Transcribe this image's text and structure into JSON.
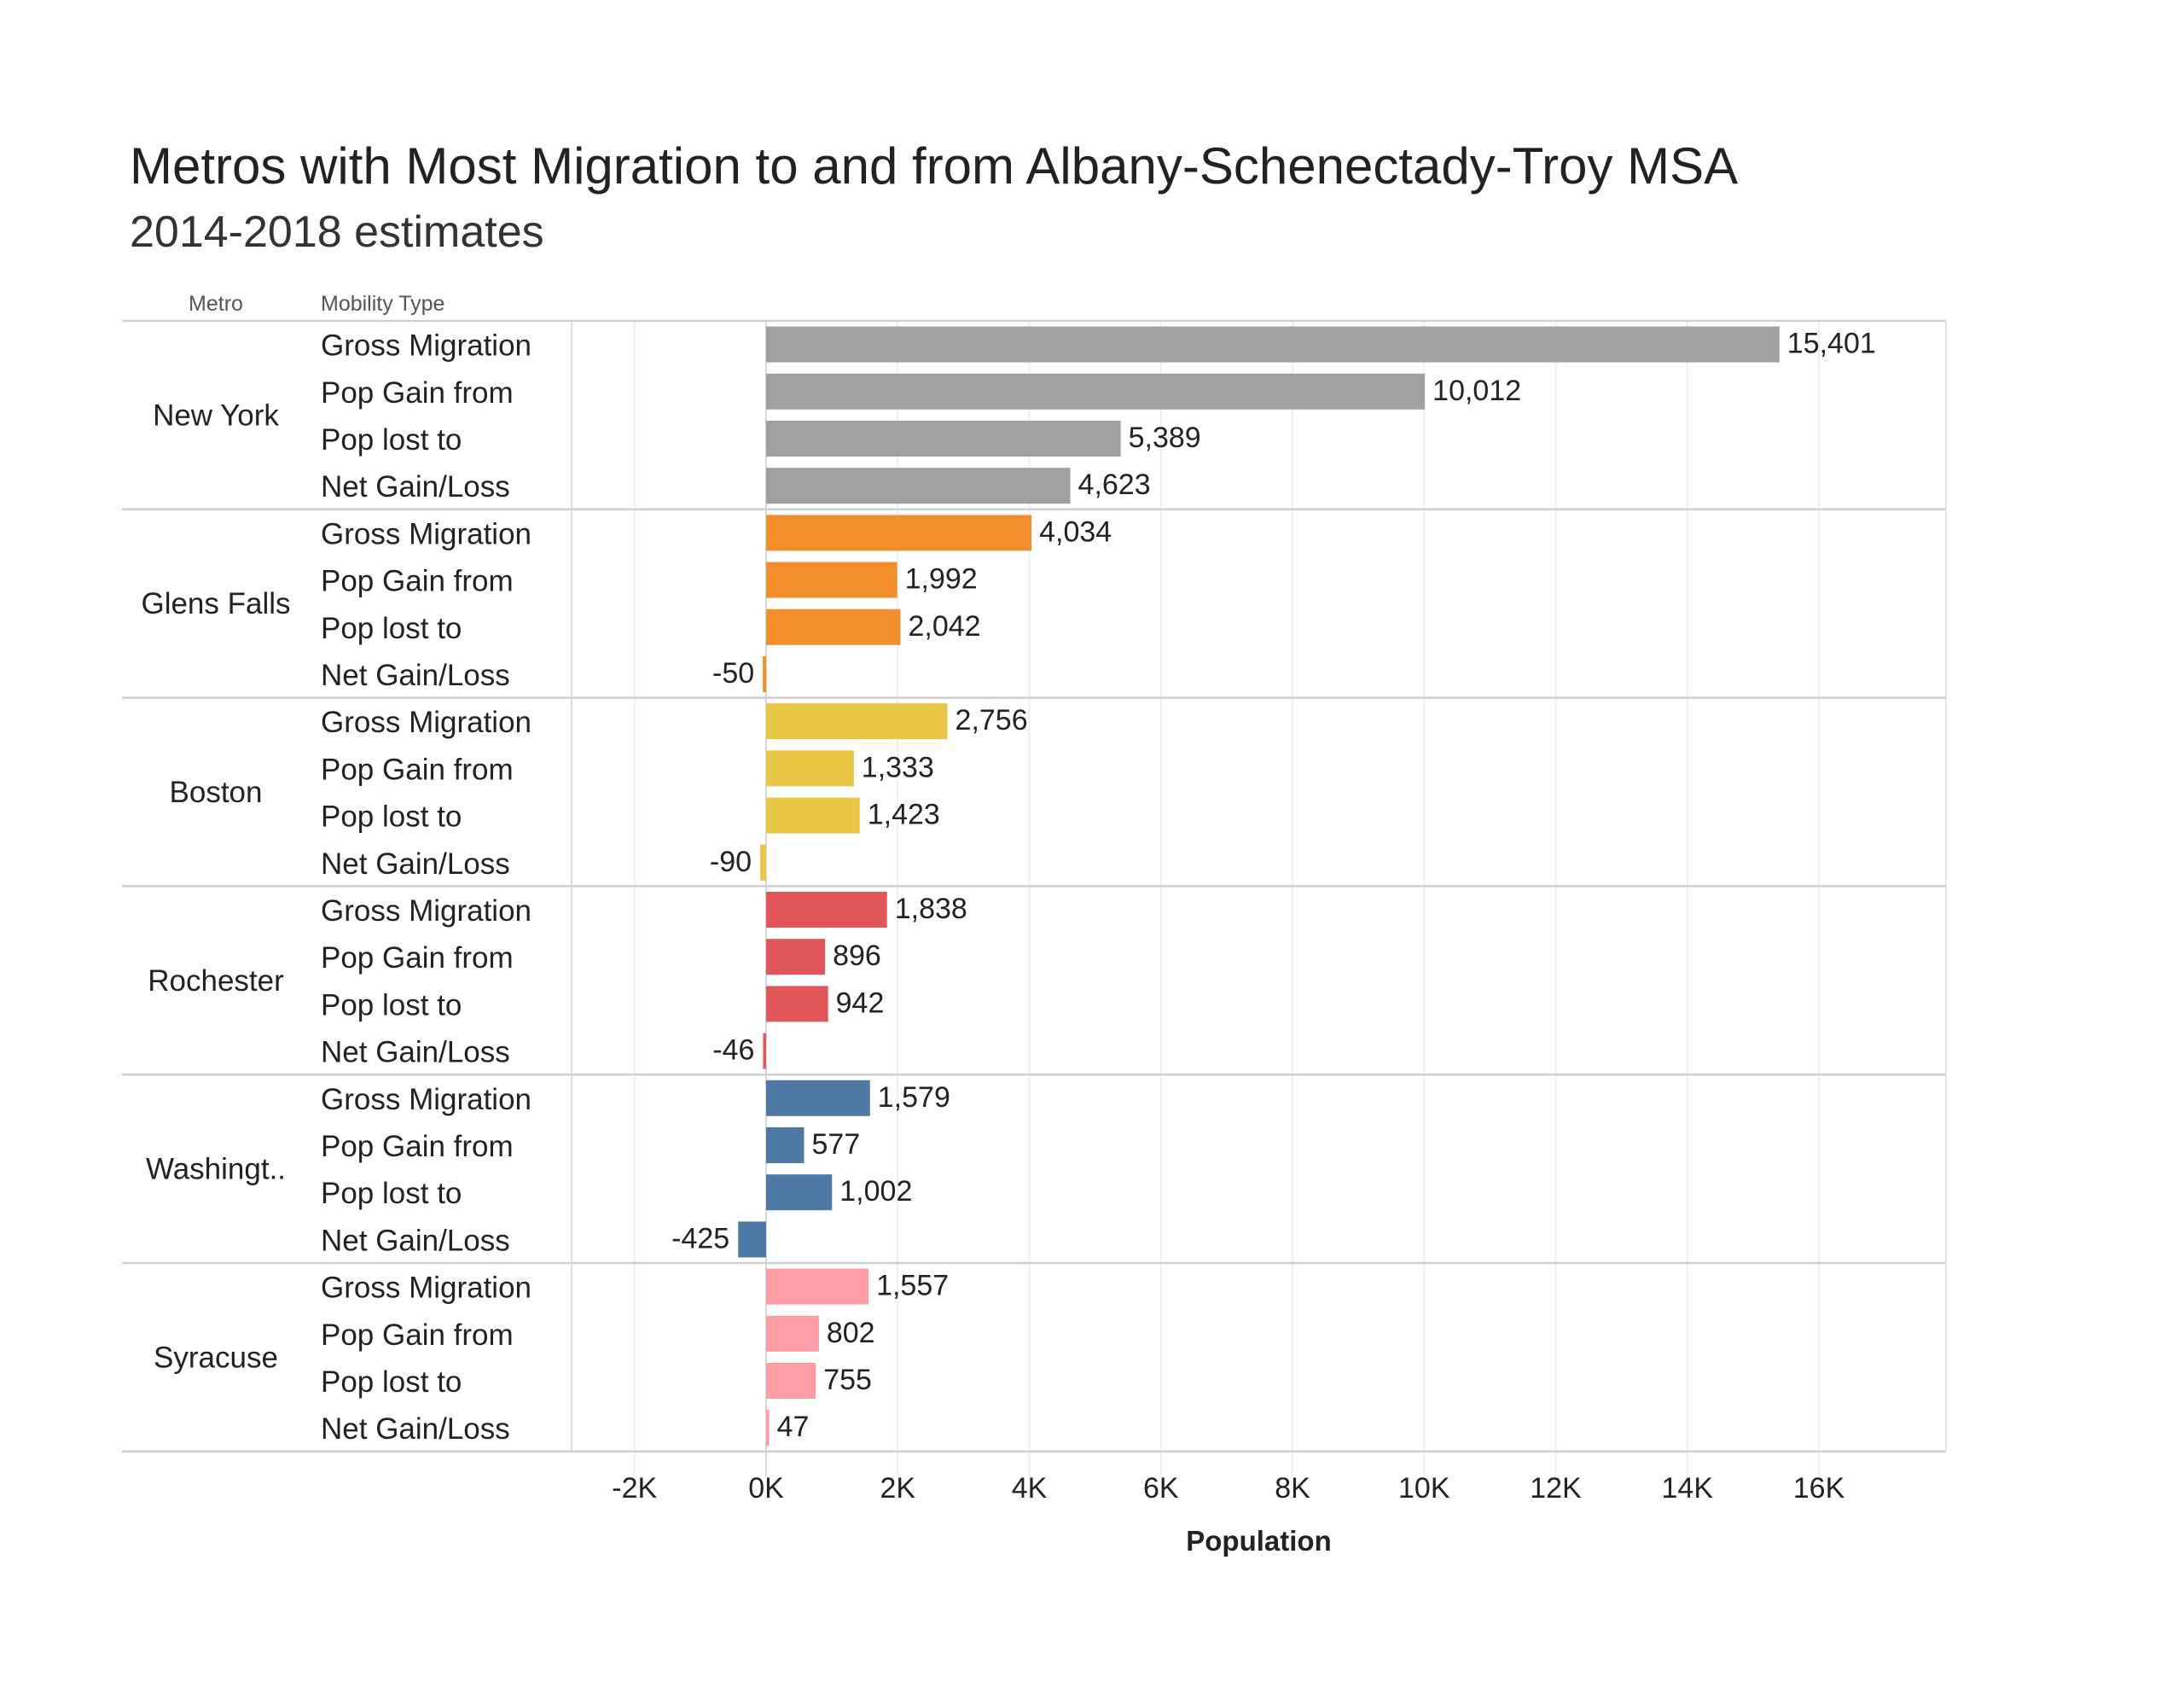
{
  "chart_data": {
    "type": "bar",
    "orientation": "horizontal",
    "title": "Metros with Most Migration to and from Albany-Schenectady-Troy MSA",
    "subtitle": "2014-2018 estimates",
    "row_headers": [
      "Metro",
      "Mobility Type"
    ],
    "xlabel": "Population",
    "xlim": [
      -2000,
      17500
    ],
    "x_ticks": [
      -2000,
      0,
      2000,
      4000,
      6000,
      8000,
      10000,
      12000,
      14000,
      16000
    ],
    "x_tick_labels": [
      "-2K",
      "0K",
      "2K",
      "4K",
      "6K",
      "8K",
      "10K",
      "12K",
      "14K",
      "16K"
    ],
    "grid": "vertical",
    "mobility_types": [
      "Gross Migration",
      "Pop Gain from",
      "Pop lost to",
      "Net Gain/Loss"
    ],
    "groups": [
      {
        "metro": "New York",
        "color": "#a0a0a0",
        "values": [
          15401,
          10012,
          5389,
          4623
        ],
        "labels": [
          "15,401",
          "10,012",
          "5,389",
          "4,623"
        ]
      },
      {
        "metro": "Glens Falls",
        "color": "#f28e2b",
        "values": [
          4034,
          1992,
          2042,
          -50
        ],
        "labels": [
          "4,034",
          "1,992",
          "2,042",
          "-50"
        ]
      },
      {
        "metro": "Boston",
        "color": "#e9c646",
        "values": [
          2756,
          1333,
          1423,
          -90
        ],
        "labels": [
          "2,756",
          "1,333",
          "1,423",
          "-90"
        ]
      },
      {
        "metro": "Rochester",
        "color": "#e15759",
        "values": [
          1838,
          896,
          942,
          -46
        ],
        "labels": [
          "1,838",
          "896",
          "942",
          "-46"
        ]
      },
      {
        "metro": "Washingt..",
        "color": "#4e79a7",
        "values": [
          1579,
          577,
          1002,
          -425
        ],
        "labels": [
          "1,579",
          "577",
          "1,002",
          "-425"
        ]
      },
      {
        "metro": "Syracuse",
        "color": "#ff9da7",
        "values": [
          1557,
          802,
          755,
          47
        ],
        "labels": [
          "1,557",
          "802",
          "755",
          "47"
        ]
      }
    ]
  }
}
